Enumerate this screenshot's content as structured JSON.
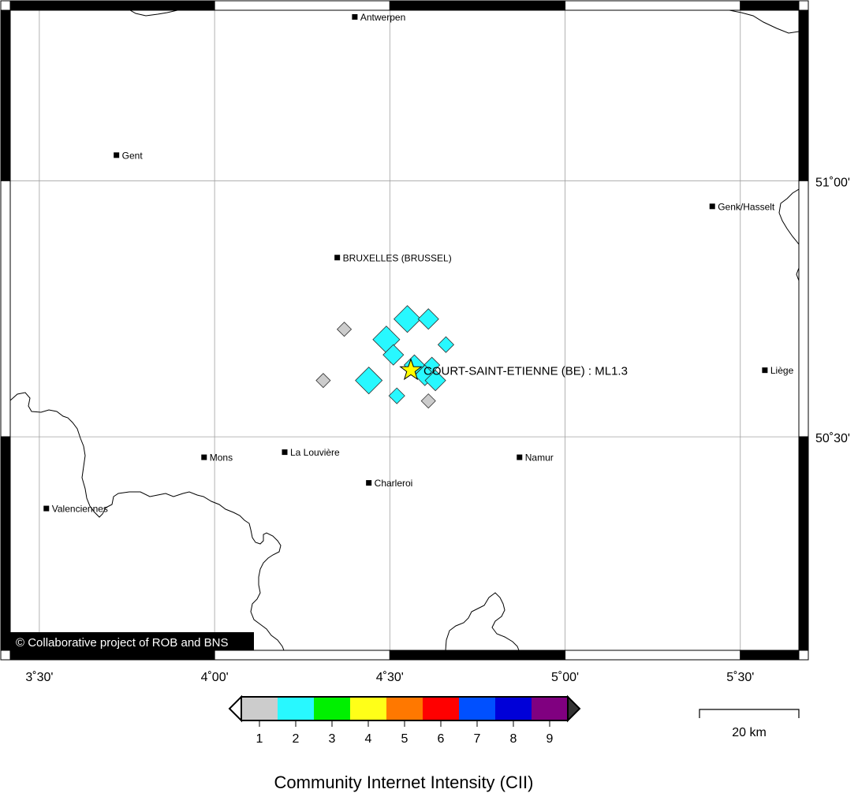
{
  "map": {
    "lon_range": [
      3.417,
      5.667
    ],
    "lat_range": [
      50.083,
      51.333
    ],
    "grid_lon": [
      3.5,
      4.0,
      4.5,
      5.0,
      5.5
    ],
    "grid_lat": [
      50.5,
      51.0
    ],
    "lon_labels": [
      "3˚30'",
      "4˚00'",
      "4˚30'",
      "5˚00'",
      "5˚30'"
    ],
    "lat_labels": [
      "50˚30'",
      "51˚00'"
    ],
    "copyright": "© Collaborative project of ROB and BNS"
  },
  "cities": [
    {
      "name": "Antwerpen",
      "lon": 4.4,
      "lat": 51.32
    },
    {
      "name": "Gent",
      "lon": 3.72,
      "lat": 51.05
    },
    {
      "name": "Genk/Hasselt",
      "lon": 5.42,
      "lat": 50.95
    },
    {
      "name": "BRUXELLES (BRUSSEL)",
      "lon": 4.35,
      "lat": 50.85
    },
    {
      "name": "Liège",
      "lon": 5.57,
      "lat": 50.63
    },
    {
      "name": "Mons",
      "lon": 3.97,
      "lat": 50.46
    },
    {
      "name": "La Louvière",
      "lon": 4.2,
      "lat": 50.47
    },
    {
      "name": "Namur",
      "lon": 4.87,
      "lat": 50.46
    },
    {
      "name": "Charleroi",
      "lon": 4.44,
      "lat": 50.41
    },
    {
      "name": "Valenciennes",
      "lon": 3.52,
      "lat": 50.36
    }
  ],
  "epicenter": {
    "label": "COURT-SAINT-ETIENNE (BE) : ML1.3",
    "lon": 4.56,
    "lat": 50.63
  },
  "observations": [
    {
      "lon": 4.37,
      "lat": 50.71,
      "cii": 1
    },
    {
      "lon": 4.31,
      "lat": 50.61,
      "cii": 1
    },
    {
      "lon": 4.61,
      "lat": 50.57,
      "cii": 1
    },
    {
      "lon": 4.55,
      "lat": 50.73,
      "cii": 2
    },
    {
      "lon": 4.61,
      "lat": 50.73,
      "cii": 2
    },
    {
      "lon": 4.66,
      "lat": 50.68,
      "cii": 2
    },
    {
      "lon": 4.49,
      "lat": 50.69,
      "cii": 2
    },
    {
      "lon": 4.51,
      "lat": 50.66,
      "cii": 2
    },
    {
      "lon": 4.57,
      "lat": 50.64,
      "cii": 2
    },
    {
      "lon": 4.62,
      "lat": 50.64,
      "cii": 2
    },
    {
      "lon": 4.6,
      "lat": 50.62,
      "cii": 2
    },
    {
      "lon": 4.63,
      "lat": 50.61,
      "cii": 2
    },
    {
      "lon": 4.44,
      "lat": 50.61,
      "cii": 2
    },
    {
      "lon": 4.52,
      "lat": 50.58,
      "cii": 2
    }
  ],
  "colorbar": {
    "title": "Community Internet Intensity (CII)",
    "ticks": [
      "1",
      "2",
      "3",
      "4",
      "5",
      "6",
      "7",
      "8",
      "9"
    ],
    "colors": [
      "#cccccc",
      "#28f8ff",
      "#00f000",
      "#ffff18",
      "#ff7800",
      "#ff0000",
      "#0050ff",
      "#0000d8",
      "#800080"
    ]
  },
  "scalebar": {
    "label": "20 km"
  }
}
